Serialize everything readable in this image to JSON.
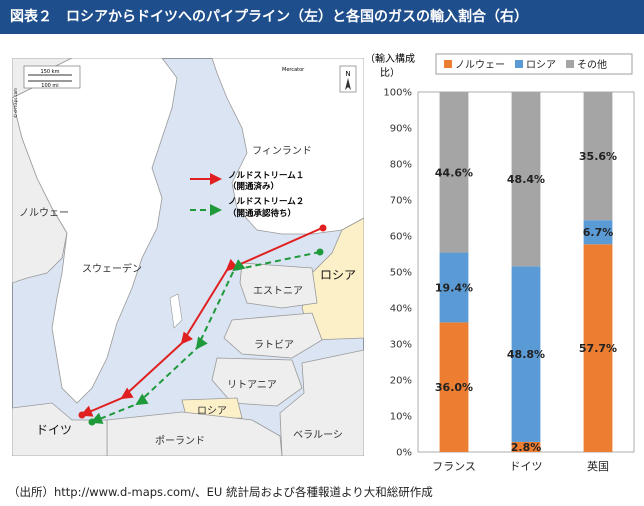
{
  "header": {
    "title": "図表２　ロシアからドイツへのパイプライン（左）と各国のガスの輸入割合（右）"
  },
  "map": {
    "scale_km": "150 km",
    "scale_mi": "100 mi",
    "projection": "Mercator",
    "north": "N",
    "copyright": "© d-maps.com",
    "legend_line1": "ノルドストリーム１",
    "legend_line1_status": "（開通済み）",
    "legend_line2": "ノルドストリーム２",
    "legend_line2_status": "（開通承認待ち）",
    "line1_color": "#e02020",
    "line2_color": "#1f9a3a",
    "labels": {
      "finland": "フィンランド",
      "norway": "ノルウェー",
      "sweden": "スウェーデン",
      "russia_main": "ロシア",
      "estonia": "エストニア",
      "latvia": "ラトビア",
      "lithuania": "リトアニア",
      "russia_kaliningrad": "ロシア",
      "germany": "ドイツ",
      "poland": "ポーランド",
      "belarus": "ベラルーシ"
    }
  },
  "chart_data": {
    "type": "bar",
    "stacked": true,
    "ylabel": "（輸入構成比）",
    "categories": [
      "フランス",
      "ドイツ",
      "英国"
    ],
    "series": [
      {
        "name": "ノルウェー",
        "color": "#ed7d31",
        "values": [
          36.0,
          2.8,
          57.7
        ]
      },
      {
        "name": "ロシア",
        "color": "#5b9bd5",
        "values": [
          19.4,
          48.8,
          6.7
        ]
      },
      {
        "name": "その他",
        "color": "#a5a5a5",
        "values": [
          44.6,
          48.4,
          35.6
        ]
      }
    ],
    "ylim": [
      0,
      100
    ],
    "yticks": [
      "0%",
      "10%",
      "20%",
      "30%",
      "40%",
      "50%",
      "60%",
      "70%",
      "80%",
      "90%",
      "100%"
    ],
    "legend_position": "top",
    "grid": false
  },
  "source": "（出所）http://www.d-maps.com/、EU 統計局および各種報道より大和総研作成"
}
